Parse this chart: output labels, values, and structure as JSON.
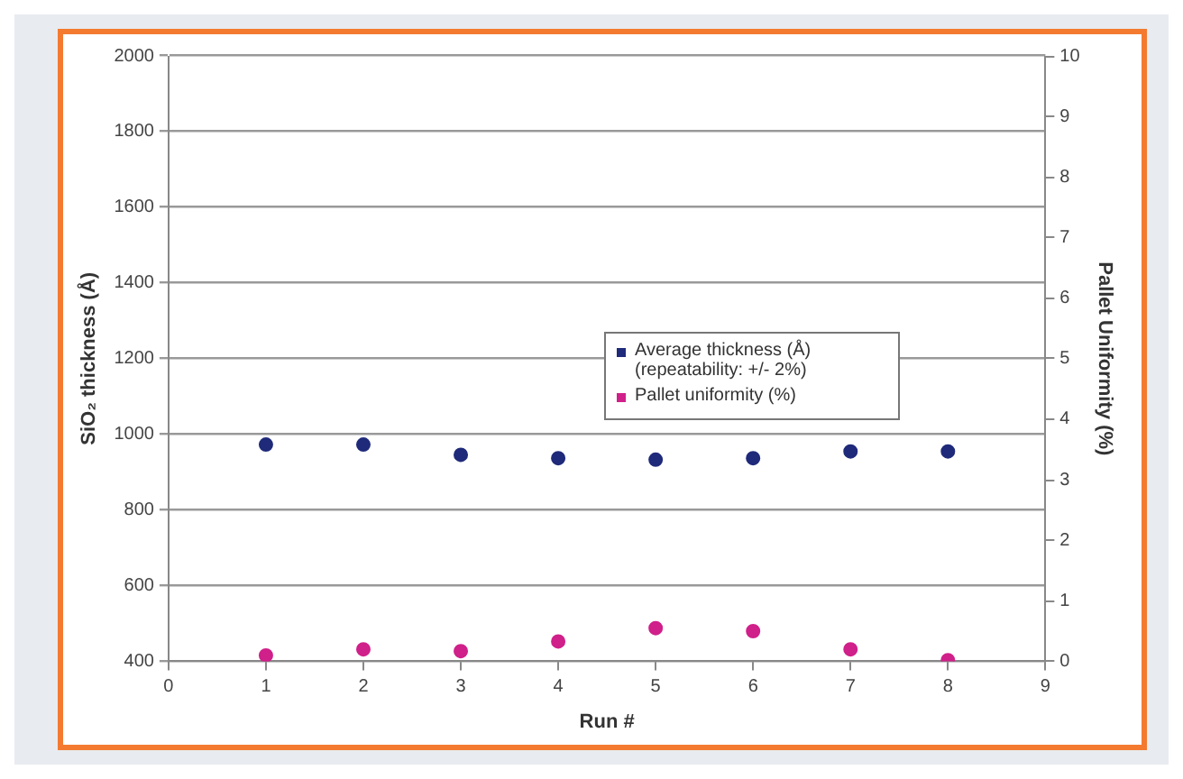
{
  "chart_data": {
    "type": "scatter",
    "xlabel": "Run #",
    "ylabel": "SiO₂ thickness (Å)",
    "y2label": "Pallet Uniformity (%)",
    "x": [
      1,
      2,
      3,
      4,
      5,
      6,
      7,
      8
    ],
    "series": [
      {
        "name": "Average thickness (Å) (repeatability: +/- 2%)",
        "color": "#1f2a7a",
        "values": [
          973,
          973,
          946,
          937,
          933,
          937,
          955,
          955
        ]
      },
      {
        "name": "Pallet uniformity (%)",
        "color": "#d0208a",
        "axis": "y2",
        "values": [
          0.1,
          0.2,
          0.17,
          0.33,
          0.55,
          0.5,
          0.2,
          0.02
        ]
      }
    ],
    "xlim": [
      0,
      9
    ],
    "xticks": [
      0,
      1,
      2,
      3,
      4,
      5,
      6,
      7,
      8,
      9
    ],
    "ylim": [
      400,
      2000
    ],
    "yticks": [
      400,
      600,
      800,
      1000,
      1200,
      1400,
      1600,
      1800,
      2000
    ],
    "y2lim": [
      0,
      10
    ],
    "y2ticks": [
      0,
      1,
      2,
      3,
      4,
      5,
      6,
      7,
      8,
      9,
      10
    ],
    "grid": "y",
    "legend": "right",
    "marker": "circle"
  }
}
